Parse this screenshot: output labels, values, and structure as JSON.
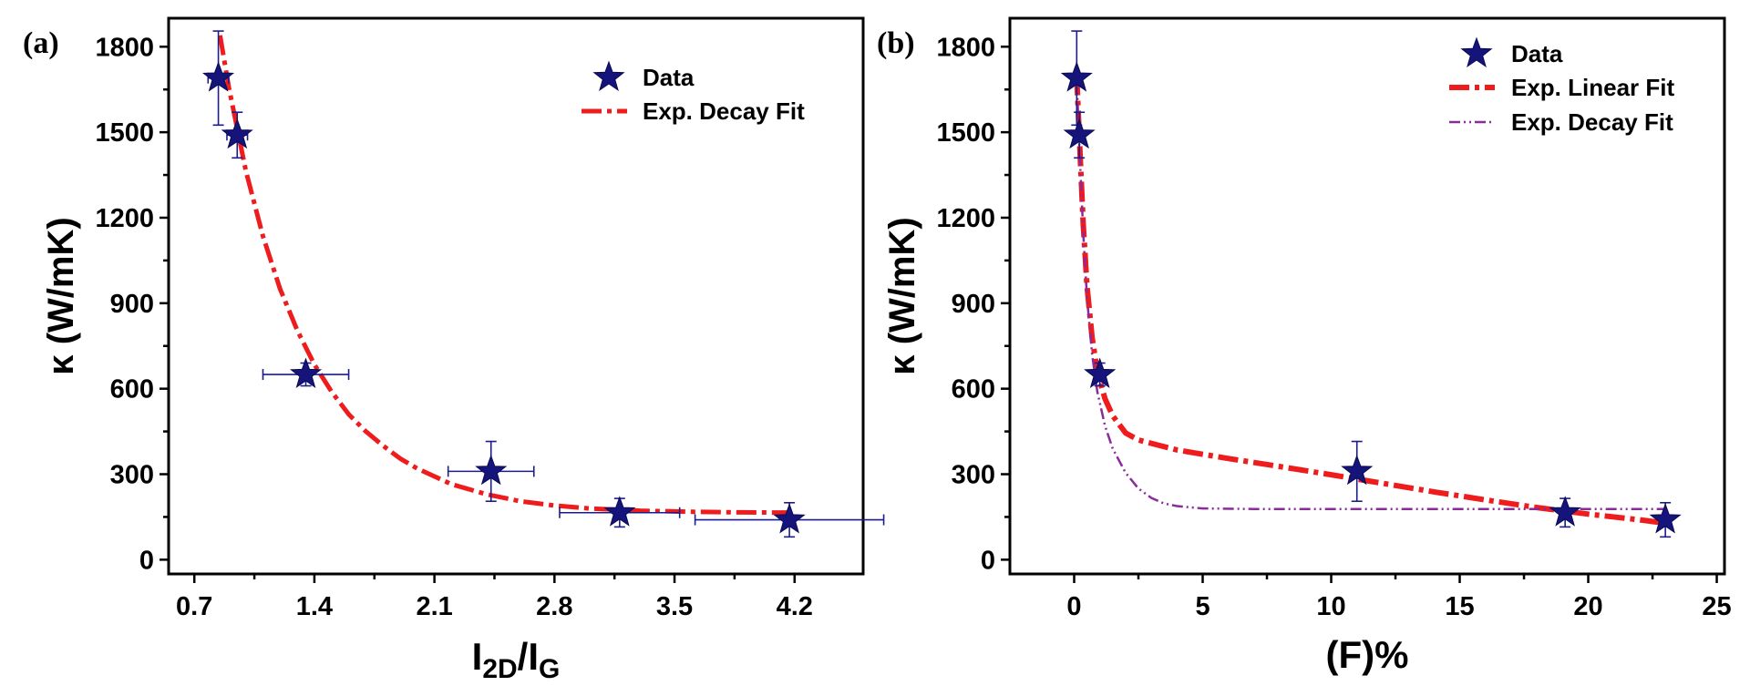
{
  "chart_data": [
    {
      "type": "scatter",
      "panel_label": "(a)",
      "xlabel": {
        "main": "I",
        "sub1": "2D",
        "mid": "/I",
        "sub2": "G"
      },
      "ylabel": "κ (W/mK)",
      "xlim": [
        0.55,
        4.6
      ],
      "ylim": [
        -50,
        1900
      ],
      "xticks": [
        0.7,
        1.4,
        2.1,
        2.8,
        3.5,
        4.2
      ],
      "xtick_labels": [
        "0.7",
        "1.4",
        "2.1",
        "2.8",
        "3.5",
        "4.2"
      ],
      "yticks": [
        0,
        300,
        600,
        900,
        1200,
        1500,
        1800
      ],
      "ytick_labels": [
        "0",
        "300",
        "600",
        "900",
        "1200",
        "1500",
        "1800"
      ],
      "legend": [
        "Data",
        "Exp. Decay Fit"
      ],
      "legend_position": "top-right",
      "series": [
        {
          "name": "Data",
          "marker": "star",
          "color": "#14147a",
          "points": [
            {
              "x": 0.84,
              "y": 1690,
              "xerr": 0.06,
              "yerr": [
                165,
                165
              ]
            },
            {
              "x": 0.95,
              "y": 1490,
              "xerr": 0.06,
              "yerr": [
                80,
                80
              ]
            },
            {
              "x": 1.35,
              "y": 650,
              "xerr": 0.25,
              "yerr": [
                40,
                40
              ]
            },
            {
              "x": 2.43,
              "y": 310,
              "xerr": 0.25,
              "yerr": [
                105,
                105
              ]
            },
            {
              "x": 3.18,
              "y": 165,
              "xerr": 0.35,
              "yerr": [
                50,
                50
              ]
            },
            {
              "x": 4.17,
              "y": 140,
              "xerr": 0.55,
              "yerr": [
                60,
                60
              ]
            }
          ]
        },
        {
          "name": "Exp. Decay Fit",
          "style": "dash-dot",
          "color": "#ee1c1c",
          "x": [
            0.85,
            0.9,
            1.0,
            1.1,
            1.2,
            1.3,
            1.4,
            1.5,
            1.6,
            1.7,
            1.8,
            1.9,
            2.0,
            2.2,
            2.4,
            2.6,
            2.8,
            3.0,
            3.3,
            3.6,
            3.9,
            4.2
          ],
          "y": [
            1840,
            1660,
            1365,
            1135,
            950,
            805,
            685,
            590,
            510,
            450,
            400,
            355,
            320,
            265,
            230,
            205,
            190,
            180,
            172,
            168,
            166,
            165
          ]
        }
      ]
    },
    {
      "type": "scatter",
      "panel_label": "(b)",
      "xlabel": "(F)%",
      "ylabel": "κ (W/mK)",
      "xlim": [
        -2.5,
        25.3
      ],
      "ylim": [
        -50,
        1900
      ],
      "xticks": [
        0,
        5,
        10,
        15,
        20,
        25
      ],
      "xtick_labels": [
        "0",
        "5",
        "10",
        "15",
        "20",
        "25"
      ],
      "yticks": [
        0,
        300,
        600,
        900,
        1200,
        1500,
        1800
      ],
      "ytick_labels": [
        "0",
        "300",
        "600",
        "900",
        "1200",
        "1500",
        "1800"
      ],
      "legend": [
        "Data",
        "Exp. Linear Fit",
        "Exp. Decay Fit"
      ],
      "legend_position": "top-right",
      "series": [
        {
          "name": "Data",
          "marker": "star",
          "color": "#14147a",
          "points": [
            {
              "x": 0.1,
              "y": 1690,
              "yerr": [
                165,
                165
              ]
            },
            {
              "x": 0.2,
              "y": 1490,
              "yerr": [
                80,
                80
              ]
            },
            {
              "x": 1.0,
              "y": 650,
              "yerr": [
                40,
                40
              ]
            },
            {
              "x": 11.0,
              "y": 310,
              "yerr": [
                105,
                105
              ]
            },
            {
              "x": 19.1,
              "y": 165,
              "yerr": [
                50,
                50
              ]
            },
            {
              "x": 23.0,
              "y": 140,
              "yerr": [
                60,
                60
              ]
            }
          ]
        },
        {
          "name": "Exp. Linear Fit",
          "style": "dash-dot-thick",
          "color": "#ee1c1c",
          "x": [
            0.1,
            0.2,
            0.35,
            0.5,
            0.7,
            0.9,
            1.2,
            1.5,
            2.0,
            2.5,
            4.0,
            6.0,
            8.0,
            10.0,
            12.0,
            14.0,
            16.0,
            18.0,
            20.0,
            22.0,
            23.0
          ],
          "y": [
            1700,
            1490,
            1180,
            960,
            780,
            660,
            565,
            505,
            445,
            420,
            385,
            355,
            327,
            298,
            268,
            238,
            210,
            183,
            160,
            140,
            128
          ]
        },
        {
          "name": "Exp. Decay Fit",
          "style": "dash-dot-dot",
          "color": "#8a2b9a",
          "x": [
            0.1,
            0.2,
            0.35,
            0.5,
            0.7,
            0.9,
            1.2,
            1.5,
            2.0,
            2.5,
            3.0,
            3.5,
            4.0,
            5.0,
            7.0,
            10.0,
            15.0,
            20.0,
            23.0
          ],
          "y": [
            1690,
            1460,
            1150,
            920,
            720,
            590,
            470,
            390,
            305,
            250,
            217,
            197,
            188,
            180,
            178,
            178,
            178,
            178,
            178
          ]
        }
      ]
    }
  ]
}
